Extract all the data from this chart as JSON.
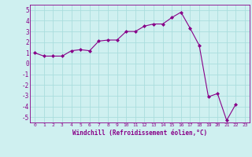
{
  "x": [
    0,
    1,
    2,
    3,
    4,
    5,
    6,
    7,
    8,
    9,
    10,
    11,
    12,
    13,
    14,
    15,
    16,
    17,
    18,
    19,
    20,
    21,
    22,
    23
  ],
  "y": [
    1.0,
    0.7,
    0.7,
    0.7,
    1.2,
    1.3,
    1.2,
    2.1,
    2.2,
    2.2,
    3.0,
    3.0,
    3.5,
    3.7,
    3.7,
    4.3,
    4.8,
    3.3,
    1.7,
    -3.1,
    -2.8,
    -5.3,
    -3.8,
    null
  ],
  "line_color": "#880088",
  "marker": "D",
  "marker_size": 2.0,
  "bg_color": "#cff0f0",
  "grid_color": "#aadddd",
  "tick_label_color": "#880088",
  "xlabel": "Windchill (Refroidissement éolien,°C)",
  "ylim": [
    -5.5,
    5.5
  ],
  "xlim": [
    -0.5,
    23.5
  ],
  "yticks": [
    -5,
    -4,
    -3,
    -2,
    -1,
    0,
    1,
    2,
    3,
    4,
    5
  ],
  "xticks": [
    0,
    1,
    2,
    3,
    4,
    5,
    6,
    7,
    8,
    9,
    10,
    11,
    12,
    13,
    14,
    15,
    16,
    17,
    18,
    19,
    20,
    21,
    22,
    23
  ]
}
